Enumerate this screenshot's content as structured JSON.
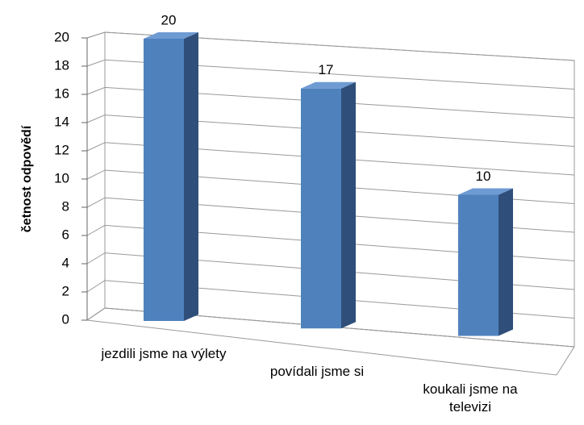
{
  "chart_data": {
    "type": "bar3d",
    "y_label": "četnost odpovědí",
    "categories": [
      "jezdili jsme na výlety",
      "povídali jsme si",
      "koukali jsme na televizi"
    ],
    "values": [
      20,
      17,
      10
    ],
    "color": "#4f81bd",
    "ylim": [
      0,
      20
    ],
    "yticks": [
      0,
      2,
      4,
      6,
      8,
      10,
      12,
      14,
      16,
      18,
      20
    ],
    "grid": true
  }
}
